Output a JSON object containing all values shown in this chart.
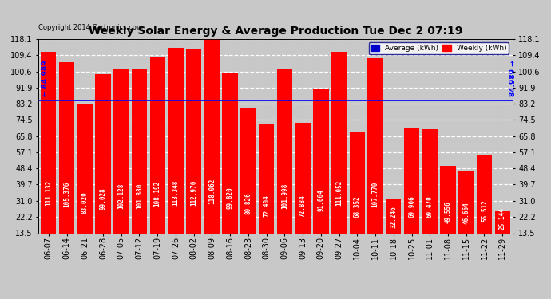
{
  "title": "Weekly Solar Energy & Average Production Tue Dec 2 07:19",
  "copyright": "Copyright 2014 Cartronics.com",
  "categories": [
    "06-07",
    "06-14",
    "06-21",
    "06-28",
    "07-05",
    "07-12",
    "07-19",
    "07-26",
    "08-02",
    "08-09",
    "08-16",
    "08-23",
    "08-30",
    "09-06",
    "09-13",
    "09-20",
    "09-27",
    "10-04",
    "10-11",
    "10-18",
    "10-25",
    "11-01",
    "11-08",
    "11-15",
    "11-22",
    "11-29"
  ],
  "values": [
    111.132,
    105.376,
    83.02,
    99.028,
    102.128,
    101.88,
    108.192,
    113.348,
    112.97,
    118.062,
    99.82,
    80.826,
    72.404,
    101.998,
    72.884,
    91.064,
    111.052,
    68.352,
    107.77,
    32.246,
    69.906,
    69.47,
    49.556,
    46.664,
    55.512,
    25.144
  ],
  "average_value": 84.989,
  "bar_color": "#FF0000",
  "average_line_color": "#0000FF",
  "background_color": "#C8C8C8",
  "plot_background_color": "#C8C8C8",
  "bar_text_color": "#FFFFFF",
  "ylim": [
    13.5,
    118.1
  ],
  "yticks": [
    13.5,
    22.2,
    31.0,
    39.7,
    48.4,
    57.1,
    65.8,
    74.5,
    83.2,
    91.9,
    100.6,
    109.4,
    118.1
  ],
  "legend_average_color": "#0000CD",
  "legend_weekly_color": "#FF0000",
  "average_label": "Average (kWh)",
  "weekly_label": "Weekly (kWh)",
  "value_labels": [
    "111.132",
    "105.376",
    "83.020",
    "99.028",
    "102.128",
    "101.880",
    "108.192",
    "113.348",
    "112.970",
    "118.062",
    "99.820",
    "80.826",
    "72.404",
    "101.998",
    "72.884",
    "91.064",
    "111.052",
    "68.352",
    "107.770",
    "32.246",
    "69.906",
    "69.470",
    "49.556",
    "46.664",
    "55.512",
    "25.144"
  ],
  "left_avg_label": "← 84.989",
  "right_avg_label": "84.989 →",
  "grid_color": "white",
  "grid_linestyle": "--",
  "bar_edge_color": "none",
  "title_fontsize": 10,
  "tick_fontsize": 7,
  "label_fontsize": 5.5
}
